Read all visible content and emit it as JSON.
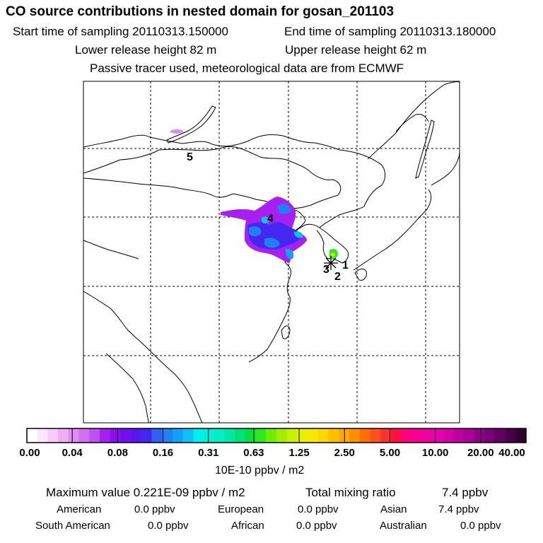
{
  "header": {
    "title": "CO  source contributions in nested domain for gosan_201103",
    "start_label": "Start time of sampling 20110313.150000",
    "end_label": "End time of sampling 20110313.180000",
    "lower_label": "Lower release height   82 m",
    "upper_label": "Upper release height   62 m",
    "tracer_label": "Passive tracer used, meteorological data are from ECMWF"
  },
  "chart_data": {
    "type": "heatmap",
    "title": "CO  source contributions in nested domain for gosan_201103",
    "colorbar": {
      "ticks": [
        "0.00",
        "0.04",
        "0.08",
        "0.16",
        "0.31",
        "0.63",
        "1.25",
        "2.50",
        "5.00",
        "10.00",
        "20.00",
        "40.00"
      ],
      "unit_label": "10E-10 ppbv / m2",
      "colors": [
        "#ffffff",
        "#fbe6fb",
        "#f5ccf6",
        "#efb0f2",
        "#e08cf0",
        "#d070f0",
        "#c050f2",
        "#a820f0",
        "#8a10f0",
        "#7010f0",
        "#5a18f0",
        "#4428f2",
        "#3060f5",
        "#2080f5",
        "#10a0f5",
        "#10c0f5",
        "#00f0f0",
        "#00f0d8",
        "#00f0c0",
        "#00e8a8",
        "#00e078",
        "#00e040",
        "#30e820",
        "#70f000",
        "#a0f000",
        "#c8f000",
        "#e8f000",
        "#f8e800",
        "#ffd800",
        "#ffc000",
        "#ffa800",
        "#ff9000",
        "#ff7000",
        "#ff5020",
        "#ff3030",
        "#ff1040",
        "#ff0080",
        "#f80090",
        "#f000a0",
        "#e800b0",
        "#d800a8",
        "#c000a0",
        "#a80098",
        "#900088",
        "#780078",
        "#600060",
        "#480048",
        "#300030"
      ]
    },
    "sources": [
      {
        "label": "1"
      },
      {
        "label": "2"
      },
      {
        "label": "3"
      },
      {
        "label": "4"
      },
      {
        "label": "5"
      }
    ]
  },
  "footer": {
    "max_label": "Maximum value  0.221E-09 ppbv / m2",
    "total_label": "Total mixing ratio",
    "total_value": "7.4 ppbv",
    "regions": [
      {
        "name": "American",
        "value": "0.0 ppbv"
      },
      {
        "name": "European",
        "value": "0.0 ppbv"
      },
      {
        "name": "Asian",
        "value": "7.4 ppbv"
      },
      {
        "name": "South American",
        "value": "0.0 ppbv"
      },
      {
        "name": "African",
        "value": "0.0 ppbv"
      },
      {
        "name": "Australian",
        "value": "0.0 ppbv"
      }
    ]
  }
}
